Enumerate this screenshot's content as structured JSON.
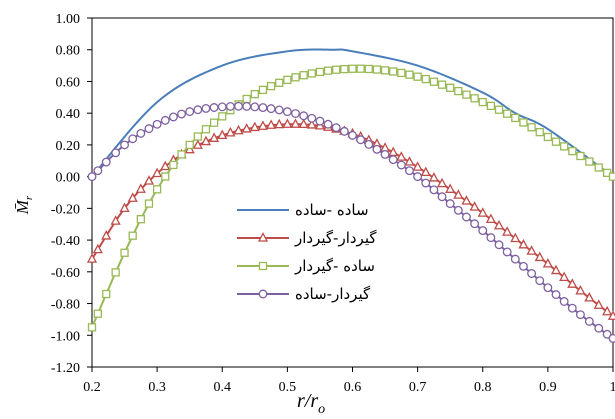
{
  "chart_data": {
    "type": "line",
    "xlabel": "r/r_o",
    "ylabel": "M̄_r",
    "xlim": [
      0.2,
      1.0
    ],
    "ylim": [
      -1.2,
      1.0
    ],
    "x_ticks": [
      "0.2",
      "0.3",
      "0.4",
      "0.5",
      "0.6",
      "0.7",
      "0.8",
      "0.9",
      "1"
    ],
    "y_ticks": [
      "1.00",
      "0.80",
      "0.60",
      "0.40",
      "0.20",
      "0.00",
      "-0.20",
      "-0.40",
      "-0.60",
      "-0.80",
      "-1.00",
      "-1.20"
    ],
    "grid": false,
    "legend": "center-left",
    "series": [
      {
        "name": "ساده -ساده",
        "color": "#4a7ebb",
        "marker": "none",
        "x": [
          0.2,
          0.3,
          0.4,
          0.5,
          0.57,
          0.6,
          0.7,
          0.8,
          0.85,
          0.9,
          1.0
        ],
        "y": [
          0.0,
          0.47,
          0.7,
          0.79,
          0.8,
          0.79,
          0.7,
          0.53,
          0.4,
          0.3,
          0.0
        ]
      },
      {
        "name": "گیردار-گیردار",
        "color": "#be4b48",
        "marker": "triangle",
        "x": [
          0.2,
          0.25,
          0.3,
          0.35,
          0.4,
          0.45,
          0.5,
          0.55,
          0.6,
          0.65,
          0.7,
          0.75,
          0.8,
          0.85,
          0.9,
          0.95,
          1.0
        ],
        "y": [
          -0.52,
          -0.2,
          0.02,
          0.17,
          0.26,
          0.31,
          0.33,
          0.32,
          0.27,
          0.18,
          0.06,
          -0.08,
          -0.23,
          -0.39,
          -0.55,
          -0.72,
          -0.88
        ]
      },
      {
        "name": "ساده -گیردار",
        "color": "#98b954",
        "marker": "square",
        "x": [
          0.2,
          0.25,
          0.3,
          0.35,
          0.4,
          0.45,
          0.5,
          0.55,
          0.6,
          0.65,
          0.7,
          0.75,
          0.8,
          0.85,
          0.9,
          0.95,
          1.0
        ],
        "y": [
          -0.95,
          -0.48,
          -0.08,
          0.2,
          0.38,
          0.52,
          0.61,
          0.66,
          0.68,
          0.67,
          0.63,
          0.56,
          0.47,
          0.37,
          0.25,
          0.13,
          0.0
        ]
      },
      {
        "name": "گیردار-ساده",
        "color": "#7d60a0",
        "marker": "circle",
        "x": [
          0.2,
          0.25,
          0.3,
          0.35,
          0.4,
          0.45,
          0.5,
          0.55,
          0.6,
          0.65,
          0.7,
          0.75,
          0.8,
          0.85,
          0.9,
          0.95,
          1.0
        ],
        "y": [
          0.0,
          0.2,
          0.33,
          0.41,
          0.44,
          0.44,
          0.41,
          0.35,
          0.26,
          0.14,
          0.0,
          -0.17,
          -0.34,
          -0.52,
          -0.7,
          -0.87,
          -1.02
        ]
      }
    ]
  }
}
